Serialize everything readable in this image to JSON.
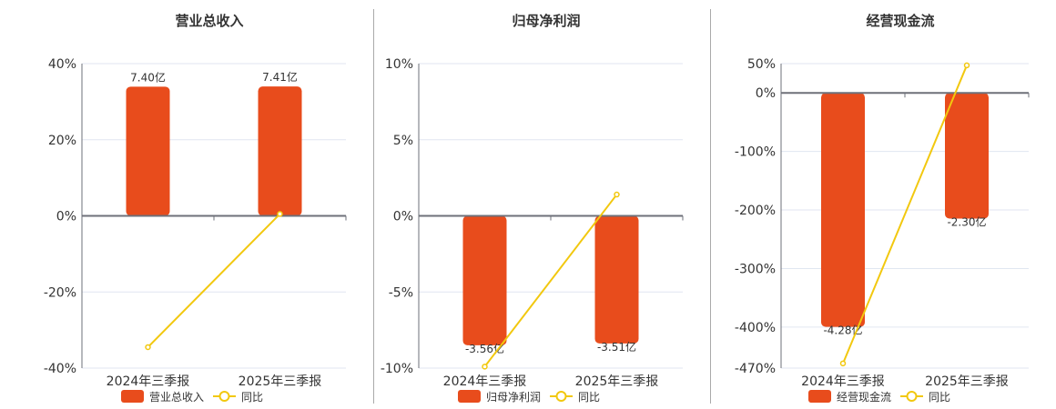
{
  "colors": {
    "bar": "#e84c1c",
    "line": "#f2c80f",
    "axis": "#6e7079",
    "grid": "#e0e6f1",
    "text": "#333333"
  },
  "chart_data": [
    {
      "type": "bar+line",
      "title": "营业总收入",
      "categories": [
        "2024年三季报",
        "2025年三季报"
      ],
      "bar_series": {
        "name": "营业总收入",
        "values": [
          7.4,
          7.41
        ],
        "labels": [
          "7.40亿",
          "7.41亿"
        ],
        "unit": "亿"
      },
      "line_series": {
        "name": "同比",
        "values": [
          -34.5,
          0.5
        ],
        "unit": "%"
      },
      "y_ticks": [
        "40%",
        "20%",
        "0%",
        "-20%",
        "-40%"
      ],
      "y_tick_values": [
        40,
        20,
        0,
        -20,
        -40
      ],
      "ylim": [
        -40,
        40
      ],
      "grid": true,
      "legend": "bottom"
    },
    {
      "type": "bar+line",
      "title": "归母净利润",
      "categories": [
        "2024年三季报",
        "2025年三季报"
      ],
      "bar_series": {
        "name": "归母净利润",
        "values": [
          -3.56,
          -3.51
        ],
        "labels": [
          "-3.56亿",
          "-3.51亿"
        ],
        "unit": "亿"
      },
      "line_series": {
        "name": "同比",
        "values": [
          -9.9,
          1.4
        ],
        "unit": "%"
      },
      "y_ticks": [
        "10%",
        "5%",
        "0%",
        "-5%",
        "-10%"
      ],
      "y_tick_values": [
        10,
        5,
        0,
        -5,
        -10
      ],
      "ylim": [
        -10,
        10
      ],
      "grid": true,
      "legend": "bottom"
    },
    {
      "type": "bar+line",
      "title": "经营现金流",
      "categories": [
        "2024年三季报",
        "2025年三季报"
      ],
      "bar_series": {
        "name": "经营现金流",
        "values": [
          -4.28,
          -2.3
        ],
        "labels": [
          "-4.28亿",
          "-2.30亿"
        ],
        "unit": "亿"
      },
      "line_series": {
        "name": "同比",
        "values": [
          -462,
          47
        ],
        "unit": "%"
      },
      "y_ticks": [
        "50%",
        "0%",
        "-100%",
        "-200%",
        "-300%",
        "-400%",
        "-470%"
      ],
      "y_tick_values": [
        50,
        0,
        -100,
        -200,
        -300,
        -400,
        -470
      ],
      "ylim": [
        -470,
        50
      ],
      "grid": true,
      "legend": "bottom"
    }
  ]
}
